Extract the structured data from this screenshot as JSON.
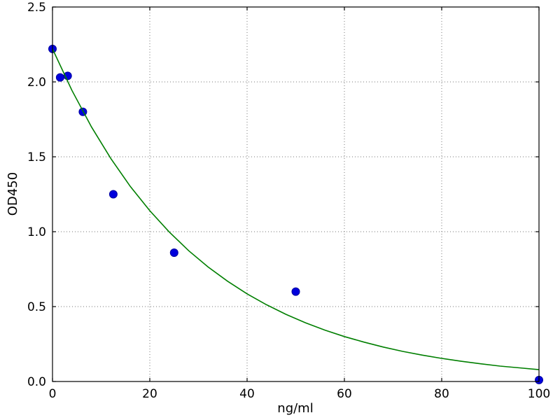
{
  "chart_data": {
    "type": "scatter",
    "title": "",
    "xlabel": "ng/ml",
    "ylabel": "OD450",
    "xlim": [
      0,
      100
    ],
    "ylim": [
      0,
      2.5
    ],
    "grid": true,
    "legend": false,
    "xticks": {
      "values": [
        0,
        20,
        40,
        60,
        80,
        100
      ],
      "labels": [
        "0",
        "20",
        "40",
        "60",
        "80",
        "100"
      ]
    },
    "yticks": {
      "values": [
        0,
        0.5,
        1.0,
        1.5,
        2.0,
        2.5
      ],
      "labels": [
        "0.0",
        "0.5",
        "1.0",
        "1.5",
        "2.0",
        "2.5"
      ]
    },
    "colors": {
      "points": "#0000dd",
      "points_edge": "#0000a0",
      "curve": "#007f00",
      "grid": "#777777",
      "axes": "#000000"
    },
    "series": [
      {
        "name": "standards",
        "kind": "scatter",
        "x": [
          0,
          1.5625,
          3.125,
          6.25,
          12.5,
          25,
          50,
          100
        ],
        "y": [
          2.22,
          2.03,
          2.04,
          1.8,
          1.25,
          0.86,
          0.6,
          0.01
        ]
      },
      {
        "name": "fit-curve",
        "kind": "line",
        "x": [
          0,
          4,
          8,
          12,
          16,
          20,
          24,
          28,
          32,
          36,
          40,
          44,
          48,
          52,
          56,
          60,
          64,
          68,
          72,
          76,
          80,
          84,
          88,
          92,
          96,
          100
        ],
        "y": [
          2.22,
          1.943,
          1.7,
          1.488,
          1.302,
          1.14,
          0.998,
          0.873,
          0.764,
          0.669,
          0.585,
          0.512,
          0.448,
          0.392,
          0.343,
          0.3,
          0.263,
          0.23,
          0.201,
          0.176,
          0.154,
          0.135,
          0.118,
          0.103,
          0.091,
          0.079
        ]
      }
    ]
  }
}
